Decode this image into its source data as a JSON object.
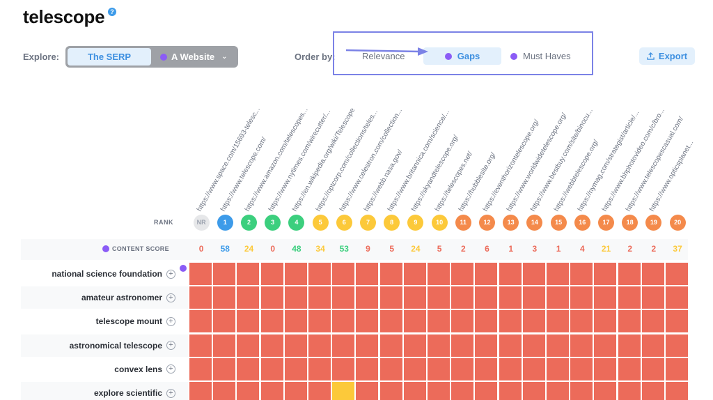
{
  "page": {
    "title": "telescope",
    "help_icon": "?"
  },
  "explore": {
    "label": "Explore:",
    "options": [
      {
        "label": "The SERP",
        "active": true
      },
      {
        "label": "A Website",
        "active": false
      }
    ]
  },
  "order": {
    "label": "Order by:",
    "options": [
      {
        "label": "Relevance",
        "active": false
      },
      {
        "label": "Gaps",
        "active": true
      },
      {
        "label": "Must Haves",
        "active": false
      }
    ]
  },
  "export": {
    "label": "Export"
  },
  "table": {
    "rank_label": "RANK",
    "content_score_label": "CONTENT SCORE",
    "columns": [
      {
        "url": "https://www.space.com/15693-telesc...",
        "rank": "NR",
        "score": "0"
      },
      {
        "url": "https://www.telescope.com/",
        "rank": "1",
        "score": "58"
      },
      {
        "url": "https://www.amazon.com/telescopes...",
        "rank": "2",
        "score": "24"
      },
      {
        "url": "https://www.nytimes.com/wirecutter/...",
        "rank": "3",
        "score": "0"
      },
      {
        "url": "https://en.wikipedia.org/wiki/Telescope",
        "rank": "4",
        "score": "48"
      },
      {
        "url": "https://optcorp.com/collections/teles...",
        "rank": "5",
        "score": "34"
      },
      {
        "url": "https://www.celestron.com/collection...",
        "rank": "6",
        "score": "53"
      },
      {
        "url": "https://webb.nasa.gov/",
        "rank": "7",
        "score": "9"
      },
      {
        "url": "https://www.britannica.com/science/...",
        "rank": "8",
        "score": "5"
      },
      {
        "url": "https://skyandtelescope.org/",
        "rank": "9",
        "score": "24"
      },
      {
        "url": "https://telescopes.net/",
        "rank": "10",
        "score": "5"
      },
      {
        "url": "https://hubblesite.org/",
        "rank": "11",
        "score": "2"
      },
      {
        "url": "https://eventhorizontelescope.org/",
        "rank": "12",
        "score": "6"
      },
      {
        "url": "https://www.worldwidetelescope.org/",
        "rank": "13",
        "score": "1"
      },
      {
        "url": "https://www.bestbuy.com/site/binocu...",
        "rank": "14",
        "score": "3"
      },
      {
        "url": "https://webbtelescope.org/",
        "rank": "15",
        "score": "1"
      },
      {
        "url": "https://nymag.com/strategist/article/...",
        "rank": "16",
        "score": "4"
      },
      {
        "url": "https://www.bhphotovideo.com/c/bro...",
        "rank": "17",
        "score": "21"
      },
      {
        "url": "https://www.telescopescasual.com/",
        "rank": "18",
        "score": "2"
      },
      {
        "url": "https://www.opticsplanet...",
        "rank": "19",
        "score": "2"
      },
      {
        "url": "",
        "rank": "20",
        "score": "37"
      }
    ],
    "rows": [
      {
        "keyword": "national science foundation",
        "cells": [
          "red",
          "red",
          "red",
          "red",
          "red",
          "red",
          "red",
          "red",
          "red",
          "red",
          "red",
          "red",
          "red",
          "red",
          "red",
          "red",
          "red",
          "red",
          "red",
          "red",
          "red"
        ]
      },
      {
        "keyword": "amateur astronomer",
        "cells": [
          "red",
          "red",
          "red",
          "red",
          "red",
          "red",
          "red",
          "red",
          "red",
          "red",
          "red",
          "red",
          "red",
          "red",
          "red",
          "red",
          "red",
          "red",
          "red",
          "red",
          "red"
        ]
      },
      {
        "keyword": "telescope mount",
        "cells": [
          "red",
          "red",
          "red",
          "red",
          "red",
          "red",
          "red",
          "red",
          "red",
          "red",
          "red",
          "red",
          "red",
          "red",
          "red",
          "red",
          "red",
          "red",
          "red",
          "red",
          "red"
        ]
      },
      {
        "keyword": "astronomical telescope",
        "cells": [
          "red",
          "red",
          "red",
          "red",
          "red",
          "red",
          "red",
          "red",
          "red",
          "red",
          "red",
          "red",
          "red",
          "red",
          "red",
          "red",
          "red",
          "red",
          "red",
          "red",
          "red"
        ]
      },
      {
        "keyword": "convex lens",
        "cells": [
          "red",
          "red",
          "red",
          "red",
          "red",
          "red",
          "red",
          "red",
          "red",
          "red",
          "red",
          "red",
          "red",
          "red",
          "red",
          "red",
          "red",
          "red",
          "red",
          "red",
          "red"
        ]
      },
      {
        "keyword": "explore scientific",
        "cells": [
          "red",
          "red",
          "red",
          "red",
          "red",
          "red",
          "yellow",
          "red",
          "red",
          "red",
          "red",
          "red",
          "red",
          "red",
          "red",
          "red",
          "red",
          "red",
          "red",
          "red",
          "red"
        ]
      }
    ]
  },
  "colors": {
    "red": "#ec6b5a",
    "yellow": "#fcc93a",
    "orange": "#f48a4b",
    "green": "#3ccf7e",
    "blue": "#3d9be9",
    "gray": "#e6e7e9",
    "purple": "#8b5cf6",
    "accent": "#3d8fe0"
  }
}
